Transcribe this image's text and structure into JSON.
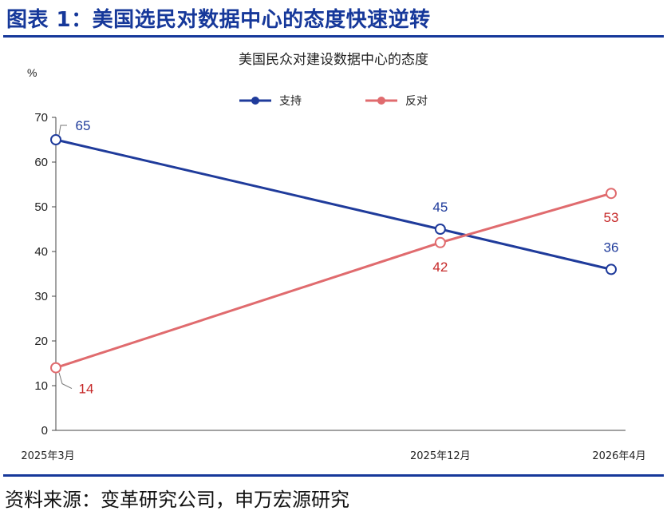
{
  "figure_title": "图表 1：美国选民对数据中心的态度快速逆转",
  "source_note": "资料来源：变革研究公司，申万宏源研究",
  "chart_data": {
    "type": "line",
    "title": "美国民众对建设数据中心的态度",
    "ylabel": "%",
    "xlabel": "",
    "categories": [
      "2025年3月",
      "2025年12月",
      "2026年4月"
    ],
    "ylim": [
      0,
      70
    ],
    "yticks": [
      0,
      10,
      20,
      30,
      40,
      50,
      60,
      70
    ],
    "grid": false,
    "legend_position": "top-center",
    "series": [
      {
        "name": "支持",
        "values": [
          65,
          45,
          36
        ],
        "color": "#1f3b9b",
        "labels": [
          "65",
          "45",
          "36"
        ]
      },
      {
        "name": "反对",
        "values": [
          14,
          42,
          53
        ],
        "color": "#e06b6e",
        "label_color": "#c62828",
        "labels": [
          "14",
          "42",
          "53"
        ]
      }
    ]
  }
}
